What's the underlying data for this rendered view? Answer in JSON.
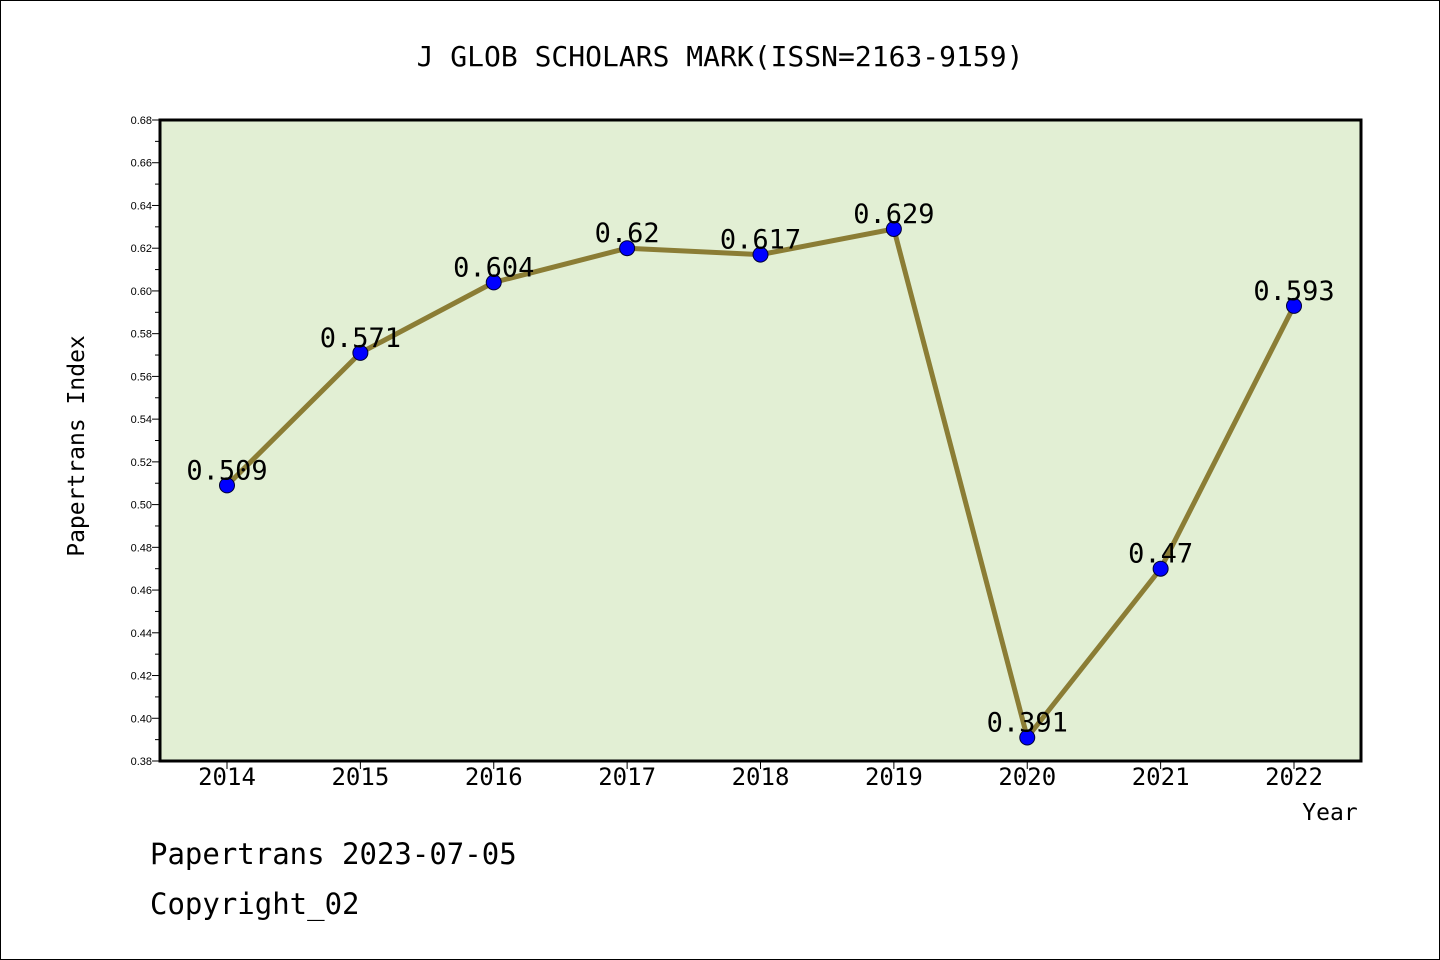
{
  "chart_data": {
    "type": "line",
    "title": "J GLOB SCHOLARS MARK(ISSN=2163-9159)",
    "xlabel": "Year",
    "ylabel": "Papertrans Index",
    "categories": [
      "2014",
      "2015",
      "2016",
      "2017",
      "2018",
      "2019",
      "2020",
      "2021",
      "2022"
    ],
    "values": [
      0.509,
      0.571,
      0.604,
      0.62,
      0.617,
      0.629,
      0.391,
      0.47,
      0.593
    ],
    "data_labels": [
      "0.509",
      "0.571",
      "0.604",
      "0.62",
      "0.617",
      "0.629",
      "0.391",
      "0.47",
      "0.593"
    ],
    "ylim": [
      0.38,
      0.68
    ],
    "yticks": [
      "0.38",
      "0.40",
      "0.42",
      "0.44",
      "0.46",
      "0.48",
      "0.50",
      "0.52",
      "0.54",
      "0.56",
      "0.58",
      "0.60",
      "0.62",
      "0.64",
      "0.66",
      "0.68"
    ],
    "grid": false,
    "colors": {
      "plot_background": "#e2efd4",
      "line": "#8b7d35",
      "marker": "#0000ff"
    }
  },
  "footer": {
    "line1": "Papertrans 2023-07-05",
    "line2": "Copyright_02"
  }
}
